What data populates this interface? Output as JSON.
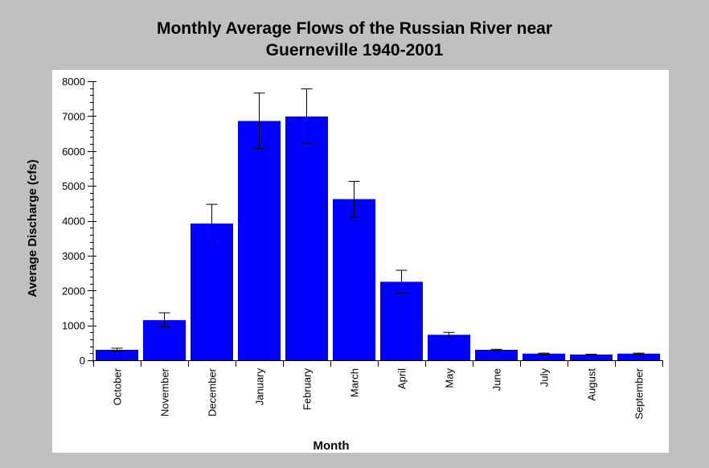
{
  "chart_data": {
    "type": "bar",
    "title_line1": "Monthly Average Flows of the Russian River near",
    "title_line2": "Guerneville 1940-2001",
    "xlabel": "Month",
    "ylabel": "Average Discharge (cfs)",
    "ylim": [
      0,
      8000
    ],
    "yticks": [
      0,
      1000,
      2000,
      3000,
      4000,
      5000,
      6000,
      7000,
      8000
    ],
    "categories": [
      "October",
      "November",
      "December",
      "January",
      "February",
      "March",
      "April",
      "May",
      "June",
      "July",
      "August",
      "September"
    ],
    "values": [
      300,
      1150,
      3920,
      6860,
      6990,
      4620,
      2250,
      730,
      300,
      190,
      165,
      190
    ],
    "error_low": [
      260,
      960,
      3380,
      6070,
      6220,
      4100,
      1920,
      660,
      280,
      175,
      155,
      175
    ],
    "error_high": [
      345,
      1360,
      4470,
      7660,
      7780,
      5130,
      2580,
      800,
      315,
      205,
      175,
      205
    ],
    "bar_color": "#0000ff",
    "plot_background": "#ffffff",
    "page_background": "#c0c0c0",
    "grid": false
  }
}
